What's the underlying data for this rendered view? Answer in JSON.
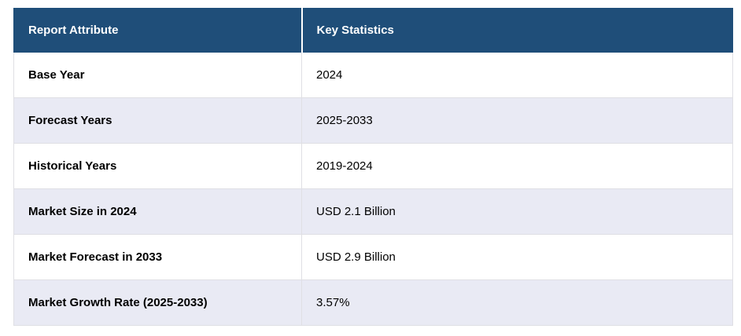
{
  "chart_data": {
    "type": "table",
    "title": "Report Attribute / Key Statistics",
    "columns": [
      "Report Attribute",
      "Key Statistics"
    ],
    "rows": [
      [
        "Base Year",
        "2024"
      ],
      [
        "Forecast Years",
        "2025-2033"
      ],
      [
        "Historical Years",
        "2019-2024"
      ],
      [
        "Market Size in 2024",
        "USD 2.1 Billion"
      ],
      [
        "Market Forecast in 2033",
        "USD 2.9 Billion"
      ],
      [
        "Market Growth Rate (2025-2033)",
        "3.57%"
      ]
    ]
  },
  "table": {
    "headers": {
      "attribute": "Report Attribute",
      "value": "Key Statistics"
    },
    "rows": [
      {
        "attribute": "Base Year",
        "value": "2024"
      },
      {
        "attribute": "Forecast Years",
        "value": "2025-2033"
      },
      {
        "attribute": "Historical Years",
        "value": "2019-2024"
      },
      {
        "attribute": "Market Size in 2024",
        "value": "USD 2.1 Billion"
      },
      {
        "attribute": "Market Forecast in 2033",
        "value": "USD 2.9 Billion"
      },
      {
        "attribute": "Market Growth Rate (2025-2033)",
        "value": "3.57%"
      }
    ],
    "colors": {
      "header_bg": "#1F4E79",
      "header_text": "#FFFFFF",
      "stripe_bg": "#E9EAF4",
      "row_bg": "#FFFFFF",
      "border": "#DFDFE4",
      "body_text": "#000000"
    }
  }
}
